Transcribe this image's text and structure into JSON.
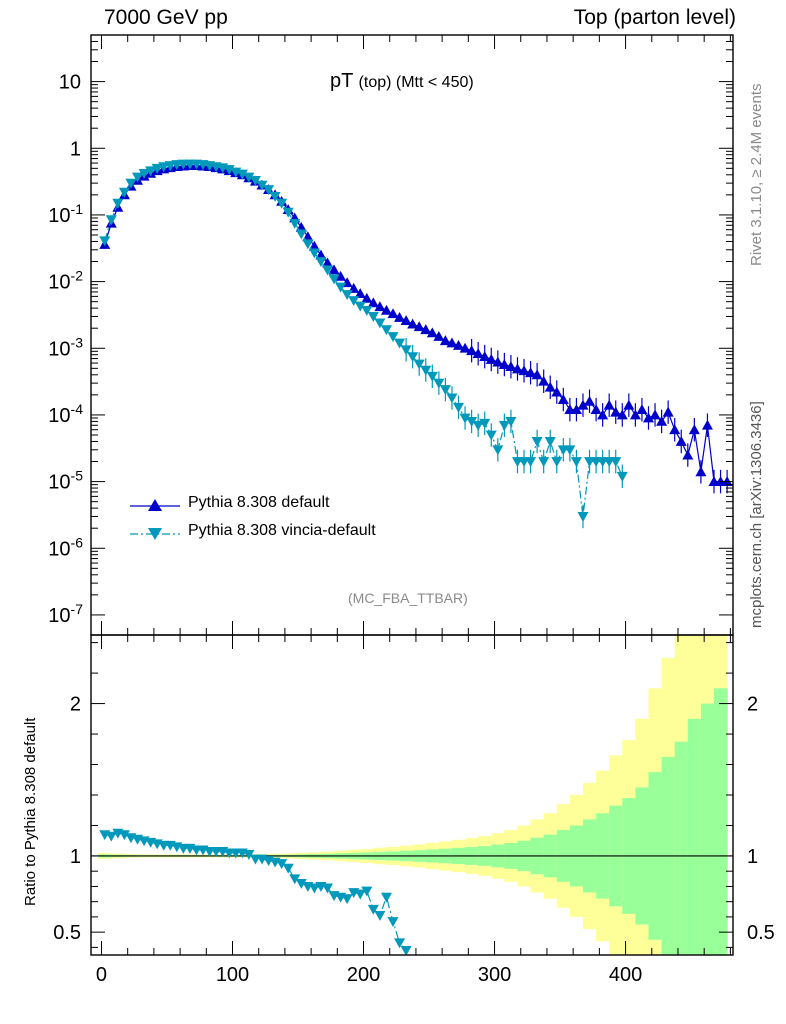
{
  "header": {
    "left": "7000 GeV pp",
    "right": "Top (parton level)"
  },
  "title": {
    "main": "pT",
    "sub": "(top) (Mtt < 450)"
  },
  "watermark": "(MC_FBA_TTBAR)",
  "side_labels": {
    "rivet": "Rivet 3.1.10, ≥ 2.4M events",
    "source": "mcplots.cern.ch [arXiv:1306.3436]"
  },
  "ratio_ylabel": "Ratio to Pythia 8.308 default",
  "colors": {
    "default": "#0000cc",
    "vincia": "#0099bb",
    "band_inner": "#99ff99",
    "band_outer": "#ffff99"
  },
  "chart_data": [
    {
      "type": "line",
      "panel": "main",
      "yscale": "log",
      "xlim": [
        -8,
        482
      ],
      "ylim": [
        5e-08,
        50
      ],
      "ytick_labels": [
        "10",
        "1",
        "10^-1",
        "10^-2",
        "10^-3",
        "10^-4",
        "10^-5",
        "10^-6",
        "10^-7"
      ],
      "legend_position": "lower-left",
      "series": [
        {
          "name": "Pythia 8.308 default",
          "marker": "triangle-up",
          "line": "solid",
          "x": [
            2.5,
            7.5,
            12.5,
            17.5,
            22.5,
            27.5,
            32.5,
            37.5,
            42.5,
            47.5,
            52.5,
            57.5,
            62.5,
            67.5,
            72.5,
            77.5,
            82.5,
            87.5,
            92.5,
            97.5,
            102.5,
            107.5,
            112.5,
            117.5,
            122.5,
            127.5,
            132.5,
            137.5,
            142.5,
            147.5,
            152.5,
            157.5,
            162.5,
            167.5,
            172.5,
            177.5,
            182.5,
            187.5,
            192.5,
            197.5,
            202.5,
            207.5,
            212.5,
            217.5,
            222.5,
            227.5,
            232.5,
            237.5,
            242.5,
            247.5,
            252.5,
            257.5,
            262.5,
            267.5,
            272.5,
            277.5,
            282.5,
            287.5,
            292.5,
            297.5,
            302.5,
            307.5,
            312.5,
            317.5,
            322.5,
            327.5,
            332.5,
            337.5,
            342.5,
            347.5,
            352.5,
            357.5,
            362.5,
            367.5,
            372.5,
            377.5,
            382.5,
            387.5,
            392.5,
            397.5,
            402.5,
            407.5,
            412.5,
            417.5,
            422.5,
            427.5,
            432.5,
            437.5,
            442.5,
            447.5,
            452.5,
            457.5,
            462.5,
            467.5,
            472.5,
            477.5
          ],
          "y": [
            0.036,
            0.075,
            0.13,
            0.2,
            0.27,
            0.33,
            0.38,
            0.42,
            0.46,
            0.49,
            0.51,
            0.53,
            0.54,
            0.55,
            0.55,
            0.54,
            0.53,
            0.51,
            0.49,
            0.46,
            0.43,
            0.4,
            0.36,
            0.32,
            0.28,
            0.24,
            0.2,
            0.16,
            0.12,
            0.09,
            0.065,
            0.047,
            0.034,
            0.025,
            0.019,
            0.015,
            0.012,
            0.0096,
            0.0079,
            0.0066,
            0.0056,
            0.0048,
            0.0042,
            0.0037,
            0.0033,
            0.0029,
            0.0026,
            0.0023,
            0.0021,
            0.0019,
            0.0017,
            0.0015,
            0.0013,
            0.0012,
            0.0011,
            0.001,
            0.00092,
            0.00083,
            0.00075,
            0.00068,
            0.00062,
            0.00057,
            0.00053,
            0.00049,
            0.00046,
            0.00043,
            0.0004,
            0.00032,
            0.00026,
            0.00022,
            0.00017,
            0.00012,
            0.00012,
            0.00014,
            0.00016,
            0.00012,
            0.0001,
            0.00014,
            0.00011,
            0.0001,
            0.00014,
            0.0001,
            0.00012,
            9e-05,
            0.0001,
            8e-05,
            0.00011,
            6e-05,
            4e-05,
            2.5e-05,
            6e-05,
            1.4e-05,
            7e-05,
            1e-05,
            1e-05,
            1e-05
          ]
        },
        {
          "name": "Pythia 8.308 vincia-default",
          "marker": "triangle-down",
          "line": "dash-dot",
          "x": [
            2.5,
            7.5,
            12.5,
            17.5,
            22.5,
            27.5,
            32.5,
            37.5,
            42.5,
            47.5,
            52.5,
            57.5,
            62.5,
            67.5,
            72.5,
            77.5,
            82.5,
            87.5,
            92.5,
            97.5,
            102.5,
            107.5,
            112.5,
            117.5,
            122.5,
            127.5,
            132.5,
            137.5,
            142.5,
            147.5,
            152.5,
            157.5,
            162.5,
            167.5,
            172.5,
            177.5,
            182.5,
            187.5,
            192.5,
            197.5,
            202.5,
            207.5,
            212.5,
            217.5,
            222.5,
            227.5,
            232.5,
            237.5,
            242.5,
            247.5,
            252.5,
            257.5,
            262.5,
            267.5,
            272.5,
            277.5,
            282.5,
            287.5,
            292.5,
            297.5,
            302.5,
            307.5,
            312.5,
            317.5,
            322.5,
            327.5,
            332.5,
            337.5,
            342.5,
            347.5,
            352.5,
            357.5,
            362.5,
            367.5,
            372.5,
            377.5,
            382.5,
            387.5,
            392.5,
            397.5
          ],
          "y": [
            0.041,
            0.085,
            0.15,
            0.22,
            0.3,
            0.37,
            0.42,
            0.46,
            0.5,
            0.53,
            0.55,
            0.57,
            0.58,
            0.58,
            0.58,
            0.57,
            0.55,
            0.53,
            0.51,
            0.48,
            0.44,
            0.41,
            0.37,
            0.33,
            0.28,
            0.24,
            0.19,
            0.15,
            0.11,
            0.075,
            0.052,
            0.037,
            0.027,
            0.02,
            0.015,
            0.011,
            0.0083,
            0.0064,
            0.0052,
            0.0043,
            0.0037,
            0.003,
            0.0024,
            0.0019,
            0.0015,
            0.0012,
            0.00095,
            0.00075,
            0.00058,
            0.00047,
            0.00038,
            0.0003,
            0.00024,
            0.00018,
            0.00013,
            9e-05,
            8e-05,
            7e-05,
            7.5e-05,
            5e-05,
            3e-05,
            7e-05,
            8e-05,
            2e-05,
            2e-05,
            2e-05,
            4e-05,
            2e-05,
            4e-05,
            2e-05,
            3e-05,
            3e-05,
            2e-05,
            3e-06,
            2e-05,
            2e-05,
            2e-05,
            2e-05,
            2e-05,
            1.2e-05
          ]
        }
      ]
    },
    {
      "type": "line",
      "panel": "ratio",
      "xlim": [
        -8,
        482
      ],
      "ylim": [
        0.35,
        2.45
      ],
      "ytick_labels": [
        "0.5",
        "1",
        "2"
      ],
      "xtick_labels": [
        "0",
        "100",
        "200",
        "300",
        "400"
      ],
      "reference_line": 1,
      "bands": {
        "x": [
          2.5,
          12.5,
          22.5,
          32.5,
          42.5,
          52.5,
          62.5,
          72.5,
          82.5,
          92.5,
          102.5,
          112.5,
          122.5,
          132.5,
          142.5,
          152.5,
          162.5,
          172.5,
          182.5,
          192.5,
          202.5,
          212.5,
          222.5,
          232.5,
          242.5,
          252.5,
          262.5,
          272.5,
          282.5,
          292.5,
          302.5,
          312.5,
          322.5,
          332.5,
          342.5,
          352.5,
          362.5,
          372.5,
          382.5,
          392.5,
          402.5,
          412.5,
          422.5,
          432.5,
          442.5,
          452.5,
          462.5,
          472.5
        ],
        "inner_halfwidth": [
          0.01,
          0.008,
          0.006,
          0.005,
          0.005,
          0.005,
          0.005,
          0.005,
          0.005,
          0.005,
          0.005,
          0.005,
          0.006,
          0.007,
          0.008,
          0.01,
          0.012,
          0.014,
          0.017,
          0.02,
          0.023,
          0.027,
          0.03,
          0.034,
          0.038,
          0.043,
          0.048,
          0.053,
          0.059,
          0.065,
          0.075,
          0.085,
          0.1,
          0.12,
          0.14,
          0.17,
          0.2,
          0.24,
          0.28,
          0.33,
          0.38,
          0.45,
          0.55,
          0.65,
          0.75,
          0.9,
          1.0,
          1.1
        ],
        "outer_halfwidth": [
          0.02,
          0.016,
          0.012,
          0.01,
          0.01,
          0.01,
          0.01,
          0.01,
          0.01,
          0.01,
          0.01,
          0.01,
          0.012,
          0.014,
          0.016,
          0.02,
          0.024,
          0.028,
          0.034,
          0.04,
          0.046,
          0.054,
          0.06,
          0.068,
          0.076,
          0.086,
          0.096,
          0.106,
          0.118,
          0.13,
          0.15,
          0.17,
          0.2,
          0.24,
          0.28,
          0.34,
          0.4,
          0.48,
          0.56,
          0.66,
          0.76,
          0.9,
          1.1,
          1.3,
          1.5,
          1.8,
          2.0,
          2.2
        ]
      },
      "series": [
        {
          "name": "Pythia 8.308 vincia-default",
          "marker": "triangle-down",
          "line": "dash-dot",
          "x": [
            2.5,
            7.5,
            12.5,
            17.5,
            22.5,
            27.5,
            32.5,
            37.5,
            42.5,
            47.5,
            52.5,
            57.5,
            62.5,
            67.5,
            72.5,
            77.5,
            82.5,
            87.5,
            92.5,
            97.5,
            102.5,
            107.5,
            112.5,
            117.5,
            122.5,
            127.5,
            132.5,
            137.5,
            142.5,
            147.5,
            152.5,
            157.5,
            162.5,
            167.5,
            172.5,
            177.5,
            182.5,
            187.5,
            192.5,
            197.5,
            202.5,
            207.5,
            212.5,
            217.5,
            222.5,
            227.5,
            232.5
          ],
          "y": [
            1.14,
            1.13,
            1.15,
            1.14,
            1.12,
            1.11,
            1.1,
            1.09,
            1.08,
            1.07,
            1.07,
            1.06,
            1.05,
            1.05,
            1.04,
            1.04,
            1.03,
            1.03,
            1.03,
            1.02,
            1.02,
            1.02,
            1.01,
            0.98,
            0.98,
            0.97,
            0.96,
            0.95,
            0.92,
            0.85,
            0.82,
            0.8,
            0.79,
            0.8,
            0.79,
            0.74,
            0.73,
            0.72,
            0.76,
            0.75,
            0.77,
            0.65,
            0.61,
            0.73,
            0.57,
            0.43,
            0.38
          ]
        }
      ]
    }
  ]
}
